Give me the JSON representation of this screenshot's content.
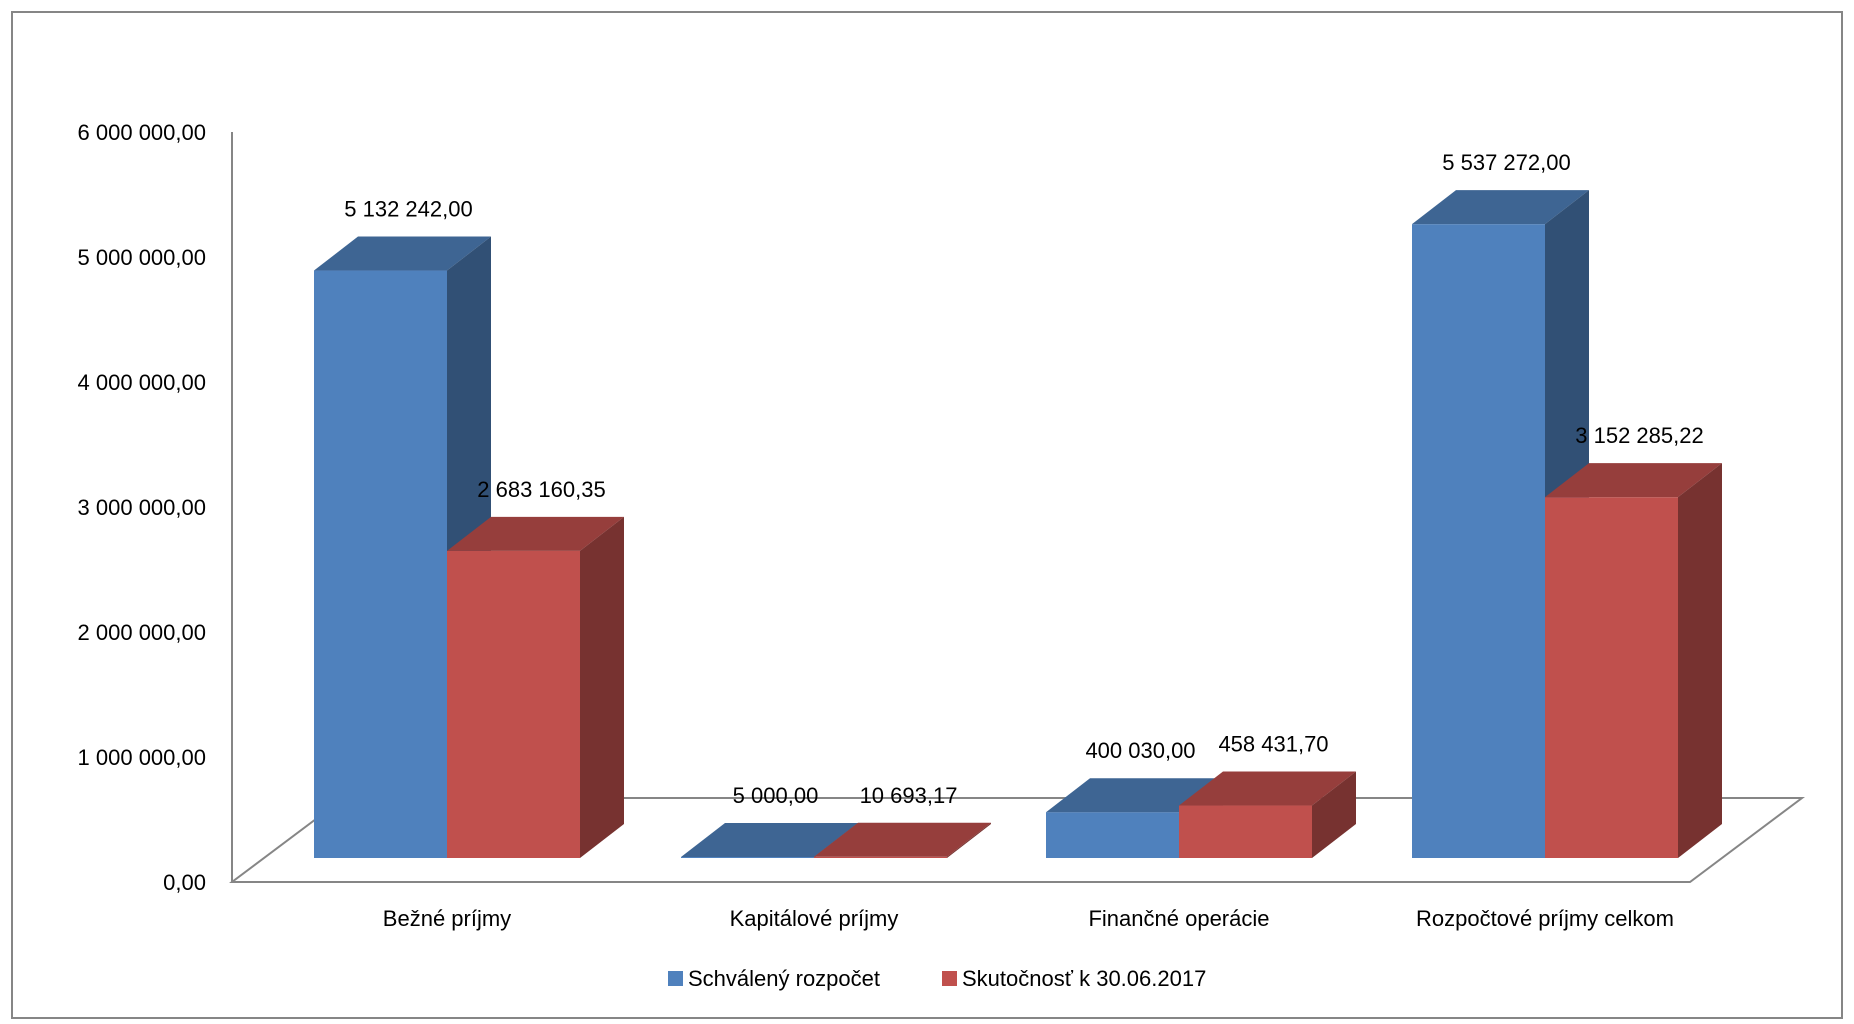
{
  "chart_data": {
    "type": "bar",
    "style": "3d-clustered",
    "categories": [
      "Bežné príjmy",
      "Kapitálové príjmy",
      "Finančné operácie",
      "Rozpočtové príjmy celkom"
    ],
    "series": [
      {
        "name": "Schválený rozpočet",
        "color": "#4F81BD",
        "values": [
          5132242.0,
          5000.0,
          400030.0,
          5537272.0
        ],
        "labels": [
          "5 132 242,00",
          "5 000,00",
          "400 030,00",
          "5 537 272,00"
        ]
      },
      {
        "name": "Skutočnosť k 30.06.2017",
        "color": "#C0504D",
        "values": [
          2683160.35,
          10693.17,
          458431.7,
          3152285.22
        ],
        "labels": [
          "2 683 160,35",
          "10 693,17",
          "458 431,70",
          "3 152 285,22"
        ]
      }
    ],
    "ylim": [
      0,
      6000000
    ],
    "yticks": [
      0,
      1000000,
      2000000,
      3000000,
      4000000,
      5000000,
      6000000
    ],
    "ytick_labels": [
      "0,00",
      "1 000 000,00",
      "2 000 000,00",
      "3 000 000,00",
      "4 000 000,00",
      "5 000 000,00",
      "6 000 000,00"
    ],
    "grid": false,
    "legend_position": "bottom",
    "title": "",
    "xlabel": "",
    "ylabel": ""
  }
}
